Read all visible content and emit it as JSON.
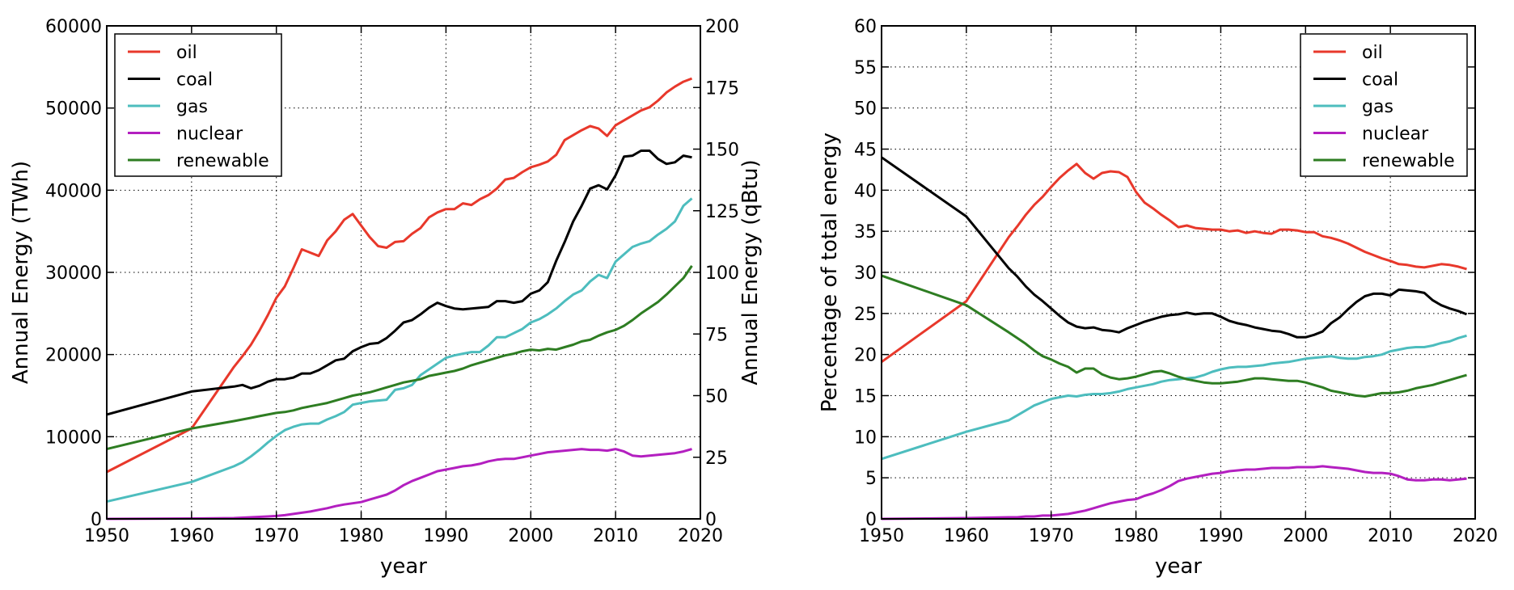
{
  "colors": {
    "oil": "#e8382b",
    "coal": "#000000",
    "gas": "#4dbdbe",
    "nuclear": "#b31fc0",
    "renewable": "#2e7d22"
  },
  "chart_data": [
    {
      "type": "line",
      "title": "",
      "xlabel": "year",
      "ylabel": "Annual Energy (TWh)",
      "y2label": "Annual Energy (qBtu)",
      "xlim": [
        1950,
        2020
      ],
      "ylim": [
        0,
        60000
      ],
      "y2lim": [
        0,
        200
      ],
      "xticks": [
        "1950",
        "1960",
        "1970",
        "1980",
        "1990",
        "2000",
        "2010",
        "2020"
      ],
      "yticks": [
        "0",
        "10000",
        "20000",
        "30000",
        "40000",
        "50000",
        "60000"
      ],
      "y2ticks": [
        "0",
        "25",
        "50",
        "75",
        "100",
        "125",
        "150",
        "175",
        "200"
      ],
      "grid": true,
      "legend_position": "top-left",
      "legend": [
        "oil",
        "coal",
        "gas",
        "nuclear",
        "renewable"
      ],
      "x": [
        1950,
        1960,
        1965,
        1966,
        1967,
        1968,
        1969,
        1970,
        1971,
        1972,
        1973,
        1974,
        1975,
        1976,
        1977,
        1978,
        1979,
        1980,
        1981,
        1982,
        1983,
        1984,
        1985,
        1986,
        1987,
        1988,
        1989,
        1990,
        1991,
        1992,
        1993,
        1994,
        1995,
        1996,
        1997,
        1998,
        1999,
        2000,
        2001,
        2002,
        2003,
        2004,
        2005,
        2006,
        2007,
        2008,
        2009,
        2010,
        2011,
        2012,
        2013,
        2014,
        2015,
        2016,
        2017,
        2018,
        2019
      ],
      "series": [
        {
          "name": "oil",
          "values": [
            5700,
            11000,
            18500,
            19800,
            21200,
            22900,
            24800,
            26900,
            28300,
            30500,
            32800,
            32400,
            32000,
            33900,
            35000,
            36400,
            37100,
            35700,
            34300,
            33200,
            33000,
            33700,
            33800,
            34700,
            35400,
            36700,
            37300,
            37700,
            37700,
            38400,
            38200,
            38900,
            39400,
            40200,
            41300,
            41500,
            42200,
            42800,
            43100,
            43500,
            44300,
            46100,
            46700,
            47300,
            47800,
            47500,
            46600,
            47900,
            48500,
            49100,
            49700,
            50100,
            50900,
            51900,
            52600,
            53200,
            53600
          ]
        },
        {
          "name": "coal",
          "values": [
            12700,
            15500,
            16100,
            16300,
            15900,
            16200,
            16700,
            17000,
            17000,
            17200,
            17700,
            17700,
            18100,
            18700,
            19300,
            19500,
            20400,
            20900,
            21300,
            21400,
            22000,
            22900,
            23900,
            24200,
            24900,
            25700,
            26300,
            25900,
            25600,
            25500,
            25600,
            25700,
            25800,
            26500,
            26500,
            26300,
            26500,
            27400,
            27800,
            28800,
            31400,
            33700,
            36200,
            38100,
            40200,
            40600,
            40100,
            41800,
            44100,
            44200,
            44800,
            44800,
            43800,
            43200,
            43400,
            44200,
            44000
          ]
        },
        {
          "name": "gas",
          "values": [
            2100,
            4500,
            6400,
            6900,
            7600,
            8400,
            9300,
            10100,
            10800,
            11200,
            11500,
            11600,
            11600,
            12100,
            12500,
            13000,
            13900,
            14100,
            14300,
            14400,
            14500,
            15700,
            15900,
            16300,
            17500,
            18200,
            18900,
            19600,
            19900,
            20100,
            20300,
            20300,
            21100,
            22100,
            22100,
            22600,
            23100,
            23900,
            24300,
            24900,
            25600,
            26500,
            27300,
            27800,
            28900,
            29700,
            29300,
            31300,
            32200,
            33100,
            33500,
            33800,
            34600,
            35300,
            36200,
            38100,
            39000
          ]
        },
        {
          "name": "nuclear",
          "values": [
            0,
            50,
            100,
            150,
            200,
            250,
            300,
            350,
            450,
            600,
            750,
            900,
            1100,
            1300,
            1550,
            1750,
            1900,
            2050,
            2350,
            2650,
            2950,
            3450,
            4100,
            4600,
            5000,
            5400,
            5800,
            6000,
            6200,
            6400,
            6500,
            6700,
            7000,
            7200,
            7300,
            7300,
            7500,
            7700,
            7900,
            8100,
            8200,
            8300,
            8400,
            8500,
            8400,
            8400,
            8300,
            8500,
            8200,
            7700,
            7600,
            7700,
            7800,
            7900,
            8000,
            8200,
            8500
          ]
        },
        {
          "name": "renewable",
          "values": [
            8500,
            11000,
            11900,
            12100,
            12300,
            12500,
            12700,
            12900,
            13000,
            13200,
            13500,
            13700,
            13900,
            14100,
            14400,
            14700,
            15000,
            15200,
            15400,
            15700,
            16000,
            16300,
            16600,
            16800,
            17000,
            17400,
            17600,
            17800,
            18000,
            18300,
            18700,
            19000,
            19300,
            19600,
            19900,
            20100,
            20400,
            20600,
            20500,
            20700,
            20600,
            20900,
            21200,
            21600,
            21800,
            22300,
            22700,
            23000,
            23500,
            24200,
            25000,
            25700,
            26400,
            27300,
            28300,
            29300,
            30800
          ]
        }
      ]
    },
    {
      "type": "line",
      "title": "",
      "xlabel": "year",
      "ylabel": "Percentage of total energy",
      "xlim": [
        1950,
        2020
      ],
      "ylim": [
        0,
        60
      ],
      "xticks": [
        "1950",
        "1960",
        "1970",
        "1980",
        "1990",
        "2000",
        "2010",
        "2020"
      ],
      "yticks": [
        "0",
        "5",
        "10",
        "15",
        "20",
        "25",
        "30",
        "35",
        "40",
        "45",
        "50",
        "55",
        "60"
      ],
      "grid": true,
      "legend_position": "top-right",
      "legend": [
        "oil",
        "coal",
        "gas",
        "nuclear",
        "renewable"
      ],
      "x": [
        1950,
        1960,
        1965,
        1966,
        1967,
        1968,
        1969,
        1970,
        1971,
        1972,
        1973,
        1974,
        1975,
        1976,
        1977,
        1978,
        1979,
        1980,
        1981,
        1982,
        1983,
        1984,
        1985,
        1986,
        1987,
        1988,
        1989,
        1990,
        1991,
        1992,
        1993,
        1994,
        1995,
        1996,
        1997,
        1998,
        1999,
        2000,
        2001,
        2002,
        2003,
        2004,
        2005,
        2006,
        2007,
        2008,
        2009,
        2010,
        2011,
        2012,
        2013,
        2014,
        2015,
        2016,
        2017,
        2018,
        2019
      ],
      "series": [
        {
          "name": "oil",
          "values": [
            19.1,
            26.5,
            34.3,
            35.6,
            37.0,
            38.2,
            39.2,
            40.4,
            41.5,
            42.4,
            43.2,
            42.1,
            41.4,
            42.1,
            42.3,
            42.2,
            41.6,
            39.8,
            38.5,
            37.8,
            37.0,
            36.3,
            35.5,
            35.7,
            35.4,
            35.3,
            35.2,
            35.2,
            35.0,
            35.1,
            34.8,
            35.0,
            34.8,
            34.7,
            35.2,
            35.2,
            35.1,
            34.9,
            34.9,
            34.4,
            34.2,
            33.9,
            33.5,
            33.0,
            32.5,
            32.1,
            31.7,
            31.4,
            31.0,
            30.9,
            30.7,
            30.6,
            30.8,
            31.0,
            30.9,
            30.7,
            30.4
          ]
        },
        {
          "name": "coal",
          "values": [
            44.0,
            36.8,
            30.5,
            29.5,
            28.3,
            27.3,
            26.5,
            25.6,
            24.7,
            23.9,
            23.4,
            23.2,
            23.3,
            23.0,
            22.9,
            22.7,
            23.2,
            23.6,
            24.0,
            24.3,
            24.6,
            24.8,
            24.9,
            25.1,
            24.9,
            25.0,
            25.0,
            24.6,
            24.1,
            23.8,
            23.6,
            23.3,
            23.1,
            22.9,
            22.8,
            22.5,
            22.1,
            22.1,
            22.4,
            22.8,
            23.8,
            24.5,
            25.5,
            26.4,
            27.1,
            27.4,
            27.4,
            27.2,
            27.9,
            27.8,
            27.7,
            27.5,
            26.6,
            26.0,
            25.6,
            25.3,
            24.9
          ]
        },
        {
          "name": "gas",
          "values": [
            7.3,
            10.6,
            12.0,
            12.6,
            13.2,
            13.8,
            14.2,
            14.6,
            14.8,
            15.0,
            14.9,
            15.1,
            15.2,
            15.2,
            15.3,
            15.5,
            15.8,
            16.0,
            16.2,
            16.4,
            16.7,
            16.9,
            17.0,
            17.1,
            17.2,
            17.5,
            17.9,
            18.2,
            18.4,
            18.5,
            18.5,
            18.6,
            18.7,
            18.9,
            19.0,
            19.1,
            19.3,
            19.5,
            19.6,
            19.7,
            19.8,
            19.6,
            19.5,
            19.5,
            19.7,
            19.8,
            20.0,
            20.4,
            20.6,
            20.8,
            20.9,
            20.9,
            21.1,
            21.4,
            21.6,
            22.0,
            22.3
          ]
        },
        {
          "name": "nuclear",
          "values": [
            0.0,
            0.1,
            0.2,
            0.2,
            0.3,
            0.3,
            0.4,
            0.4,
            0.5,
            0.6,
            0.8,
            1.0,
            1.3,
            1.6,
            1.9,
            2.1,
            2.3,
            2.4,
            2.8,
            3.1,
            3.5,
            4.0,
            4.6,
            4.9,
            5.1,
            5.3,
            5.5,
            5.6,
            5.8,
            5.9,
            6.0,
            6.0,
            6.1,
            6.2,
            6.2,
            6.2,
            6.3,
            6.3,
            6.3,
            6.4,
            6.3,
            6.2,
            6.1,
            5.9,
            5.7,
            5.6,
            5.6,
            5.5,
            5.2,
            4.8,
            4.7,
            4.7,
            4.8,
            4.8,
            4.7,
            4.8,
            4.9
          ]
        },
        {
          "name": "renewable",
          "values": [
            29.6,
            26.0,
            22.7,
            22.0,
            21.3,
            20.5,
            19.8,
            19.4,
            18.9,
            18.5,
            17.8,
            18.3,
            18.3,
            17.6,
            17.2,
            17.0,
            17.1,
            17.3,
            17.6,
            17.9,
            18.0,
            17.7,
            17.3,
            17.0,
            16.8,
            16.6,
            16.5,
            16.5,
            16.6,
            16.7,
            16.9,
            17.1,
            17.1,
            17.0,
            16.9,
            16.8,
            16.8,
            16.6,
            16.3,
            16.0,
            15.6,
            15.4,
            15.2,
            15.0,
            14.9,
            15.1,
            15.3,
            15.3,
            15.4,
            15.6,
            15.9,
            16.1,
            16.3,
            16.6,
            16.9,
            17.2,
            17.5
          ]
        }
      ]
    }
  ]
}
